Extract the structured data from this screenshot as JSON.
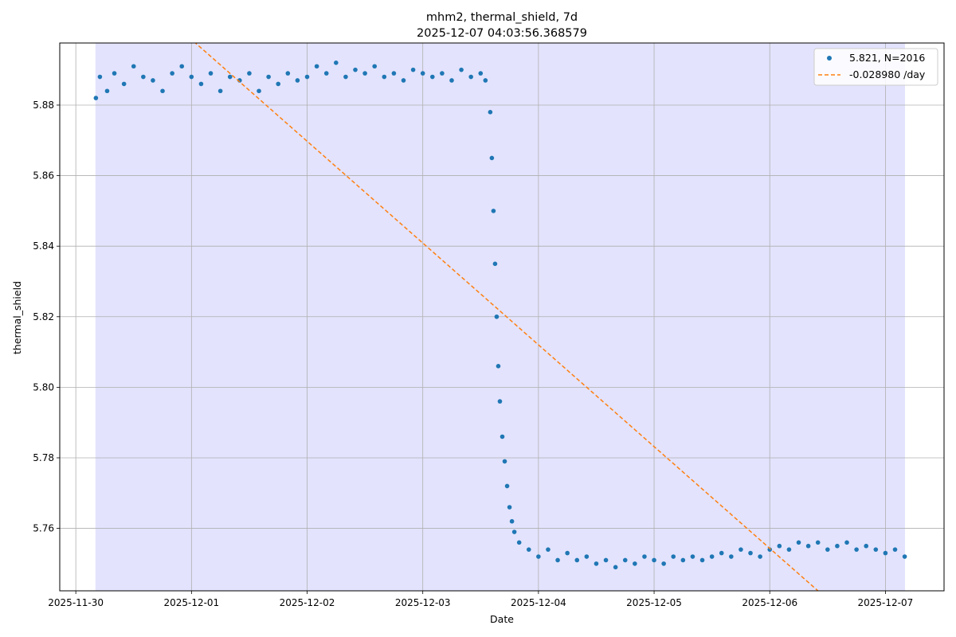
{
  "chart_data": {
    "type": "scatter",
    "title": "mhm2, thermal_shield, 7d",
    "subtitle": "2025-12-07 04:03:56.368579",
    "xlabel": "Date",
    "ylabel": "thermal_shield",
    "x_axis_type": "date",
    "xlim": [
      "2025-11-29T20:40:00",
      "2025-12-07T12:10:00"
    ],
    "ylim": [
      5.7423,
      5.8976
    ],
    "x_ticks": [
      "2025-11-30",
      "2025-12-01",
      "2025-12-02",
      "2025-12-03",
      "2025-12-04",
      "2025-12-05",
      "2025-12-06",
      "2025-12-07"
    ],
    "y_ticks": [
      5.76,
      5.78,
      5.8,
      5.82,
      5.84,
      5.86,
      5.88
    ],
    "y_tick_labels": [
      "5.76",
      "5.78",
      "5.80",
      "5.82",
      "5.84",
      "5.86",
      "5.88"
    ],
    "grid": true,
    "legend_position": "top-right",
    "shaded_region": {
      "x_start": "2025-11-30T04:03:56",
      "x_end": "2025-12-07T04:03:56",
      "color": "#e3e3fd"
    },
    "series": [
      {
        "name": "5.821, N=2016",
        "kind": "scatter",
        "color": "#1f77b4",
        "points": [
          [
            "2025-11-30T04:10:00",
            5.882
          ],
          [
            "2025-11-30T05:00:00",
            5.888
          ],
          [
            "2025-11-30T06:30:00",
            5.884
          ],
          [
            "2025-11-30T08:00:00",
            5.889
          ],
          [
            "2025-11-30T10:00:00",
            5.886
          ],
          [
            "2025-11-30T12:00:00",
            5.891
          ],
          [
            "2025-11-30T14:00:00",
            5.888
          ],
          [
            "2025-11-30T16:00:00",
            5.887
          ],
          [
            "2025-11-30T18:00:00",
            5.884
          ],
          [
            "2025-11-30T20:00:00",
            5.889
          ],
          [
            "2025-11-30T22:00:00",
            5.891
          ],
          [
            "2025-12-01T00:00:00",
            5.888
          ],
          [
            "2025-12-01T02:00:00",
            5.886
          ],
          [
            "2025-12-01T04:00:00",
            5.889
          ],
          [
            "2025-12-01T06:00:00",
            5.884
          ],
          [
            "2025-12-01T08:00:00",
            5.888
          ],
          [
            "2025-12-01T10:00:00",
            5.887
          ],
          [
            "2025-12-01T12:00:00",
            5.889
          ],
          [
            "2025-12-01T14:00:00",
            5.884
          ],
          [
            "2025-12-01T16:00:00",
            5.888
          ],
          [
            "2025-12-01T18:00:00",
            5.886
          ],
          [
            "2025-12-01T20:00:00",
            5.889
          ],
          [
            "2025-12-01T22:00:00",
            5.887
          ],
          [
            "2025-12-02T00:00:00",
            5.888
          ],
          [
            "2025-12-02T02:00:00",
            5.891
          ],
          [
            "2025-12-02T04:00:00",
            5.889
          ],
          [
            "2025-12-02T06:00:00",
            5.892
          ],
          [
            "2025-12-02T08:00:00",
            5.888
          ],
          [
            "2025-12-02T10:00:00",
            5.89
          ],
          [
            "2025-12-02T12:00:00",
            5.889
          ],
          [
            "2025-12-02T14:00:00",
            5.891
          ],
          [
            "2025-12-02T16:00:00",
            5.888
          ],
          [
            "2025-12-02T18:00:00",
            5.889
          ],
          [
            "2025-12-02T20:00:00",
            5.887
          ],
          [
            "2025-12-02T22:00:00",
            5.89
          ],
          [
            "2025-12-03T00:00:00",
            5.889
          ],
          [
            "2025-12-03T02:00:00",
            5.888
          ],
          [
            "2025-12-03T04:00:00",
            5.889
          ],
          [
            "2025-12-03T06:00:00",
            5.887
          ],
          [
            "2025-12-03T08:00:00",
            5.89
          ],
          [
            "2025-12-03T10:00:00",
            5.888
          ],
          [
            "2025-12-03T12:00:00",
            5.889
          ],
          [
            "2025-12-03T13:00:00",
            5.887
          ],
          [
            "2025-12-03T14:00:00",
            5.878
          ],
          [
            "2025-12-03T14:20:00",
            5.865
          ],
          [
            "2025-12-03T14:40:00",
            5.85
          ],
          [
            "2025-12-03T15:00:00",
            5.835
          ],
          [
            "2025-12-03T15:20:00",
            5.82
          ],
          [
            "2025-12-03T15:40:00",
            5.806
          ],
          [
            "2025-12-03T16:00:00",
            5.796
          ],
          [
            "2025-12-03T16:30:00",
            5.786
          ],
          [
            "2025-12-03T17:00:00",
            5.779
          ],
          [
            "2025-12-03T17:30:00",
            5.772
          ],
          [
            "2025-12-03T18:00:00",
            5.766
          ],
          [
            "2025-12-03T18:30:00",
            5.762
          ],
          [
            "2025-12-03T19:00:00",
            5.759
          ],
          [
            "2025-12-03T20:00:00",
            5.756
          ],
          [
            "2025-12-03T22:00:00",
            5.754
          ],
          [
            "2025-12-04T00:00:00",
            5.752
          ],
          [
            "2025-12-04T02:00:00",
            5.754
          ],
          [
            "2025-12-04T04:00:00",
            5.751
          ],
          [
            "2025-12-04T06:00:00",
            5.753
          ],
          [
            "2025-12-04T08:00:00",
            5.751
          ],
          [
            "2025-12-04T10:00:00",
            5.752
          ],
          [
            "2025-12-04T12:00:00",
            5.75
          ],
          [
            "2025-12-04T14:00:00",
            5.751
          ],
          [
            "2025-12-04T16:00:00",
            5.749
          ],
          [
            "2025-12-04T18:00:00",
            5.751
          ],
          [
            "2025-12-04T20:00:00",
            5.75
          ],
          [
            "2025-12-04T22:00:00",
            5.752
          ],
          [
            "2025-12-05T00:00:00",
            5.751
          ],
          [
            "2025-12-05T02:00:00",
            5.75
          ],
          [
            "2025-12-05T04:00:00",
            5.752
          ],
          [
            "2025-12-05T06:00:00",
            5.751
          ],
          [
            "2025-12-05T08:00:00",
            5.752
          ],
          [
            "2025-12-05T10:00:00",
            5.751
          ],
          [
            "2025-12-05T12:00:00",
            5.752
          ],
          [
            "2025-12-05T14:00:00",
            5.753
          ],
          [
            "2025-12-05T16:00:00",
            5.752
          ],
          [
            "2025-12-05T18:00:00",
            5.754
          ],
          [
            "2025-12-05T20:00:00",
            5.753
          ],
          [
            "2025-12-05T22:00:00",
            5.752
          ],
          [
            "2025-12-06T00:00:00",
            5.754
          ],
          [
            "2025-12-06T02:00:00",
            5.755
          ],
          [
            "2025-12-06T04:00:00",
            5.754
          ],
          [
            "2025-12-06T06:00:00",
            5.756
          ],
          [
            "2025-12-06T08:00:00",
            5.755
          ],
          [
            "2025-12-06T10:00:00",
            5.756
          ],
          [
            "2025-12-06T12:00:00",
            5.754
          ],
          [
            "2025-12-06T14:00:00",
            5.755
          ],
          [
            "2025-12-06T16:00:00",
            5.756
          ],
          [
            "2025-12-06T18:00:00",
            5.754
          ],
          [
            "2025-12-06T20:00:00",
            5.755
          ],
          [
            "2025-12-06T22:00:00",
            5.754
          ],
          [
            "2025-12-07T00:00:00",
            5.753
          ],
          [
            "2025-12-07T02:00:00",
            5.754
          ],
          [
            "2025-12-07T04:00:00",
            5.752
          ]
        ]
      },
      {
        "name": "-0.028980 /day",
        "kind": "line",
        "style": "dashed",
        "color": "#ff7f0e",
        "slope_per_day": -0.02898,
        "points": [
          [
            "2025-12-01T00:30:00",
            5.898
          ],
          [
            "2025-12-06T10:00:00",
            5.7423
          ]
        ]
      }
    ]
  }
}
